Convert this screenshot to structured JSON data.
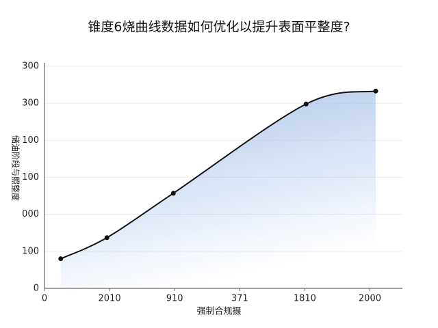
{
  "chart_data": {
    "type": "line",
    "title": "锥度6烧曲线数据如何优化以提升表面平整度?",
    "x_label": "强制合规摄",
    "y_label": "储油阶段与照整度",
    "x": [
      25,
      96,
      198,
      402,
      509
    ],
    "values": [
      80,
      137,
      257,
      498,
      533
    ],
    "color": "#111111",
    "area_color": "#9fbbe8",
    "xlim": [
      0,
      550
    ],
    "ylim": [
      0,
      600
    ],
    "xticks": [
      0,
      {
        "value": 100,
        "label": "2010"
      },
      {
        "value": 200,
        "label": "910"
      },
      {
        "value": 300,
        "label": "371"
      },
      {
        "value": 400,
        "label": "1810"
      },
      {
        "value": 500,
        "label": "2000"
      }
    ],
    "yticks": [
      0,
      100,
      {
        "value": 200,
        "label": "000"
      },
      {
        "value": 300,
        "label": "100"
      },
      {
        "value": 400,
        "label": "100"
      },
      {
        "value": 500,
        "label": "300"
      },
      {
        "value": 600,
        "label": "300"
      }
    ],
    "grid": true
  }
}
